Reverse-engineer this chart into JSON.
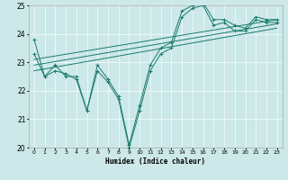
{
  "title": "",
  "xlabel": "Humidex (Indice chaleur)",
  "xlim": [
    -0.5,
    23.5
  ],
  "ylim": [
    20,
    25
  ],
  "yticks": [
    20,
    21,
    22,
    23,
    24,
    25
  ],
  "xticks": [
    0,
    1,
    2,
    3,
    4,
    5,
    6,
    7,
    8,
    9,
    10,
    11,
    12,
    13,
    14,
    15,
    16,
    17,
    18,
    19,
    20,
    21,
    22,
    23
  ],
  "background_color": "#cce8e8",
  "grid_color": "#e8f8f8",
  "line_color": "#1a7a6e",
  "lines": [
    {
      "x": [
        0,
        1,
        2,
        3,
        4,
        5,
        6,
        7,
        8,
        9,
        10,
        11,
        12,
        13,
        14,
        15,
        16,
        17,
        18,
        19,
        20,
        21,
        22,
        23
      ],
      "y": [
        23.8,
        22.5,
        22.9,
        22.5,
        22.5,
        21.3,
        22.9,
        22.4,
        21.8,
        20.1,
        21.5,
        22.9,
        23.5,
        23.7,
        24.8,
        25.0,
        25.1,
        24.5,
        24.5,
        24.3,
        24.2,
        24.6,
        24.5,
        24.5
      ],
      "marker": true
    },
    {
      "x": [
        0,
        1,
        2,
        3,
        4,
        5,
        6,
        7,
        8,
        9,
        10,
        11,
        12,
        13,
        14,
        15,
        16,
        17,
        18,
        19,
        20,
        21,
        22,
        23
      ],
      "y": [
        23.3,
        22.5,
        22.7,
        22.6,
        22.4,
        21.3,
        22.7,
        22.3,
        21.7,
        20.0,
        21.3,
        22.7,
        23.3,
        23.5,
        24.6,
        24.9,
        25.0,
        24.3,
        24.4,
        24.1,
        24.1,
        24.5,
        24.4,
        24.4
      ],
      "marker": true
    },
    {
      "x": [
        0,
        23
      ],
      "y": [
        23.1,
        24.5
      ],
      "marker": false
    },
    {
      "x": [
        0,
        23
      ],
      "y": [
        22.9,
        24.35
      ],
      "marker": false
    },
    {
      "x": [
        0,
        23
      ],
      "y": [
        22.7,
        24.2
      ],
      "marker": false
    }
  ]
}
